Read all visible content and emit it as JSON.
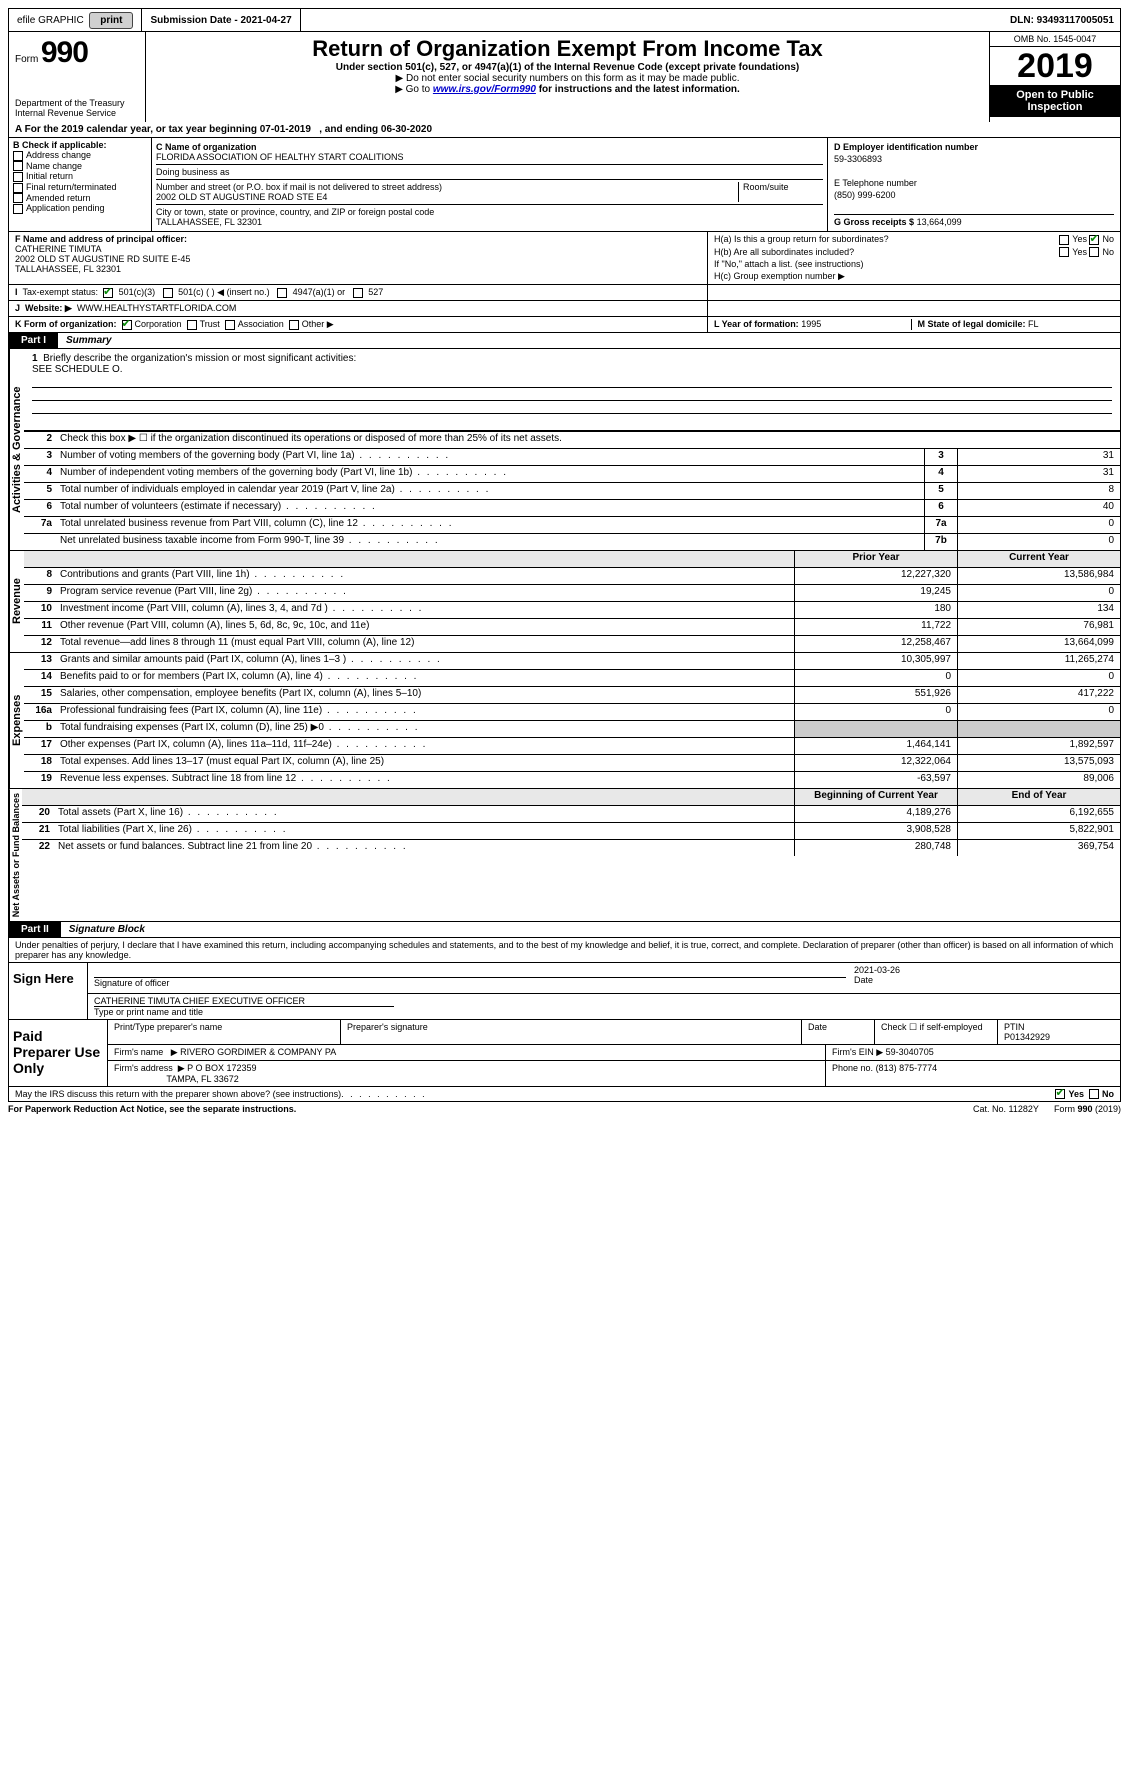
{
  "topbar": {
    "efile": "efile GRAPHIC",
    "print": "print",
    "submission": "Submission Date - 2021-04-27",
    "dln": "DLN: 93493117005051"
  },
  "header": {
    "form_label": "Form",
    "form_num": "990",
    "dept": "Department of the Treasury",
    "irs": "Internal Revenue Service",
    "title": "Return of Organization Exempt From Income Tax",
    "sub": "Under section 501(c), 527, or 4947(a)(1) of the Internal Revenue Code (except private foundations)",
    "sub2a": "▶ Do not enter social security numbers on this form as it may be made public.",
    "sub2b_pre": "▶ Go to ",
    "sub2b_link": "www.irs.gov/Form990",
    "sub2b_post": " for instructions and the latest information.",
    "omb": "OMB No. 1545-0047",
    "year": "2019",
    "open_pub1": "Open to Public",
    "open_pub2": "Inspection"
  },
  "period": {
    "text_a": "A For the 2019 calendar year, or tax year beginning 07-01-2019",
    "text_b": ", and ending 06-30-2020"
  },
  "box_b": {
    "label": "B Check if applicable:",
    "opts": [
      "Address change",
      "Name change",
      "Initial return",
      "Final return/terminated",
      "Amended return",
      "Application pending"
    ]
  },
  "box_c": {
    "name_label": "C Name of organization",
    "name": "FLORIDA ASSOCIATION OF HEALTHY START COALITIONS",
    "dba_label": "Doing business as",
    "addr_label": "Number and street (or P.O. box if mail is not delivered to street address)",
    "room_label": "Room/suite",
    "addr": "2002 OLD ST AUGUSTINE ROAD STE E4",
    "city_label": "City or town, state or province, country, and ZIP or foreign postal code",
    "city": "TALLAHASSEE, FL  32301"
  },
  "box_de": {
    "d_label": "D Employer identification number",
    "ein": "59-3306893",
    "e_label": "E Telephone number",
    "phone": "(850) 999-6200",
    "g_label": "G Gross receipts $",
    "g_val": "13,664,099"
  },
  "box_f": {
    "label": "F Name and address of principal officer:",
    "name": "CATHERINE TIMUTA",
    "addr1": "2002 OLD ST AUGUSTINE RD SUITE E-45",
    "addr2": "TALLAHASSEE, FL  32301"
  },
  "box_h": {
    "ha": "H(a)  Is this a group return for subordinates?",
    "hb": "H(b)  Are all subordinates included?",
    "hb_note": "If \"No,\" attach a list. (see instructions)",
    "hc": "H(c)  Group exemption number ▶",
    "yes": "Yes",
    "no": "No"
  },
  "box_i": {
    "label": "Tax-exempt status:",
    "o1": "501(c)(3)",
    "o2": "501(c) (   ) ◀ (insert no.)",
    "o3": "4947(a)(1) or",
    "o4": "527"
  },
  "box_j": {
    "label": "Website: ▶",
    "val": "WWW.HEALTHYSTARTFLORIDA.COM"
  },
  "box_k": {
    "label": "K Form of organization:",
    "o1": "Corporation",
    "o2": "Trust",
    "o3": "Association",
    "o4": "Other ▶"
  },
  "box_l": {
    "label": "L Year of formation:",
    "val": "1995"
  },
  "box_m": {
    "label": "M State of legal domicile:",
    "val": "FL"
  },
  "parts": {
    "p1": "Part I",
    "p1_label": "Summary",
    "p2": "Part II",
    "p2_label": "Signature Block"
  },
  "vert": {
    "gov": "Activities & Governance",
    "rev": "Revenue",
    "exp": "Expenses",
    "net": "Net Assets or Fund Balances"
  },
  "summary": {
    "q1": "Briefly describe the organization's mission or most significant activities:",
    "q1_ans": "SEE SCHEDULE O.",
    "q2": "Check this box ▶ ☐ if the organization discontinued its operations or disposed of more than 25% of its net assets.",
    "lines_single": [
      {
        "n": "3",
        "d": "Number of voting members of the governing body (Part VI, line 1a)",
        "box": "3",
        "v": "31"
      },
      {
        "n": "4",
        "d": "Number of independent voting members of the governing body (Part VI, line 1b)",
        "box": "4",
        "v": "31"
      },
      {
        "n": "5",
        "d": "Total number of individuals employed in calendar year 2019 (Part V, line 2a)",
        "box": "5",
        "v": "8"
      },
      {
        "n": "6",
        "d": "Total number of volunteers (estimate if necessary)",
        "box": "6",
        "v": "40"
      },
      {
        "n": "7a",
        "d": "Total unrelated business revenue from Part VIII, column (C), line 12",
        "box": "7a",
        "v": "0"
      },
      {
        "n": "",
        "d": "Net unrelated business taxable income from Form 990-T, line 39",
        "box": "7b",
        "v": "0"
      }
    ],
    "hdr_prior": "Prior Year",
    "hdr_curr": "Current Year",
    "hdr_boy": "Beginning of Current Year",
    "hdr_eoy": "End of Year",
    "revenue": [
      {
        "n": "8",
        "d": "Contributions and grants (Part VIII, line 1h)",
        "p": "12,227,320",
        "c": "13,586,984"
      },
      {
        "n": "9",
        "d": "Program service revenue (Part VIII, line 2g)",
        "p": "19,245",
        "c": "0"
      },
      {
        "n": "10",
        "d": "Investment income (Part VIII, column (A), lines 3, 4, and 7d )",
        "p": "180",
        "c": "134"
      },
      {
        "n": "11",
        "d": "Other revenue (Part VIII, column (A), lines 5, 6d, 8c, 9c, 10c, and 11e)",
        "p": "11,722",
        "c": "76,981"
      },
      {
        "n": "12",
        "d": "Total revenue—add lines 8 through 11 (must equal Part VIII, column (A), line 12)",
        "p": "12,258,467",
        "c": "13,664,099"
      }
    ],
    "expenses": [
      {
        "n": "13",
        "d": "Grants and similar amounts paid (Part IX, column (A), lines 1–3 )",
        "p": "10,305,997",
        "c": "11,265,274"
      },
      {
        "n": "14",
        "d": "Benefits paid to or for members (Part IX, column (A), line 4)",
        "p": "0",
        "c": "0"
      },
      {
        "n": "15",
        "d": "Salaries, other compensation, employee benefits (Part IX, column (A), lines 5–10)",
        "p": "551,926",
        "c": "417,222"
      },
      {
        "n": "16a",
        "d": "Professional fundraising fees (Part IX, column (A), line 11e)",
        "p": "0",
        "c": "0"
      },
      {
        "n": "b",
        "d": "Total fundraising expenses (Part IX, column (D), line 25) ▶0",
        "p": "",
        "c": ""
      },
      {
        "n": "17",
        "d": "Other expenses (Part IX, column (A), lines 11a–11d, 11f–24e)",
        "p": "1,464,141",
        "c": "1,892,597"
      },
      {
        "n": "18",
        "d": "Total expenses. Add lines 13–17 (must equal Part IX, column (A), line 25)",
        "p": "12,322,064",
        "c": "13,575,093"
      },
      {
        "n": "19",
        "d": "Revenue less expenses. Subtract line 18 from line 12",
        "p": "-63,597",
        "c": "89,006"
      }
    ],
    "net": [
      {
        "n": "20",
        "d": "Total assets (Part X, line 16)",
        "p": "4,189,276",
        "c": "6,192,655"
      },
      {
        "n": "21",
        "d": "Total liabilities (Part X, line 26)",
        "p": "3,908,528",
        "c": "5,822,901"
      },
      {
        "n": "22",
        "d": "Net assets or fund balances. Subtract line 21 from line 20",
        "p": "280,748",
        "c": "369,754"
      }
    ]
  },
  "sig": {
    "disclaimer": "Under penalties of perjury, I declare that I have examined this return, including accompanying schedules and statements, and to the best of my knowledge and belief, it is true, correct, and complete. Declaration of preparer (other than officer) is based on all information of which preparer has any knowledge.",
    "sign_here": "Sign Here",
    "sig_officer": "Signature of officer",
    "date_label": "Date",
    "date": "2021-03-26",
    "officer_name": "CATHERINE TIMUTA  CHIEF EXECUTIVE OFFICER",
    "type_name": "Type or print name and title"
  },
  "prep": {
    "label": "Paid Preparer Use Only",
    "col1": "Print/Type preparer's name",
    "col2": "Preparer's signature",
    "col3": "Date",
    "col4a": "Check ☐ if self-employed",
    "col5": "PTIN",
    "ptin": "P01342929",
    "firm_name_l": "Firm's name",
    "firm_name": "▶ RIVERO GORDIMER & COMPANY PA",
    "firm_ein_l": "Firm's EIN ▶",
    "firm_ein": "59-3040705",
    "firm_addr_l": "Firm's address",
    "firm_addr1": "▶ P O BOX 172359",
    "firm_addr2": "TAMPA, FL  33672",
    "phone_l": "Phone no.",
    "phone": "(813) 875-7774"
  },
  "footer": {
    "discuss": "May the IRS discuss this return with the preparer shown above? (see instructions)",
    "yes": "Yes",
    "no": "No",
    "paperwork": "For Paperwork Reduction Act Notice, see the separate instructions.",
    "cat": "Cat. No. 11282Y",
    "form": "Form 990 (2019)"
  },
  "colors": {
    "link": "#0000cc",
    "check_green": "#0a8a0a"
  }
}
